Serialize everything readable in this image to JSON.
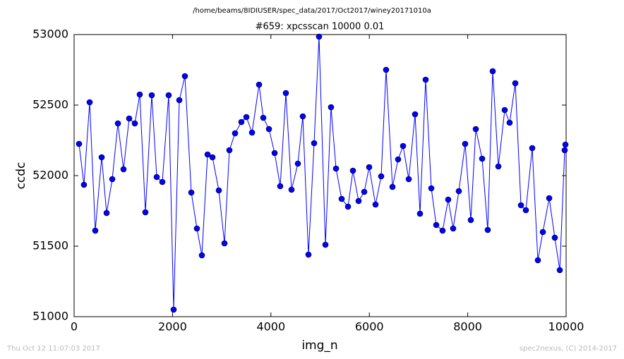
{
  "chart_data": {
    "type": "line",
    "suptitle": "/home/beams/8IDIUSER/spec_data/2017/Oct2017/winey20171010a",
    "title": "#659: xpcsscan 10000 0.01",
    "x_label": "img_n",
    "y_label": "ccdc",
    "footer_left": "Thu Oct 12 11:07:03 2017",
    "footer_right": "spec2nexus, (C) 2014-2017",
    "x": [
      100,
      200,
      316,
      430,
      560,
      660,
      775,
      890,
      1004,
      1119,
      1234,
      1334,
      1449,
      1578,
      1679,
      1793,
      1922,
      2023,
      2138,
      2252,
      2382,
      2496,
      2597,
      2712,
      2812,
      2941,
      3056,
      3156,
      3271,
      3400,
      3501,
      3616,
      3759,
      3845,
      3960,
      4075,
      4189,
      4304,
      4419,
      4548,
      4648,
      4763,
      4878,
      4978,
      5108,
      5222,
      5323,
      5438,
      5567,
      5667,
      5782,
      5897,
      5997,
      6126,
      6241,
      6341,
      6471,
      6585,
      6686,
      6801,
      6930,
      7030,
      7145,
      7260,
      7360,
      7489,
      7604,
      7704,
      7819,
      7948,
      8063,
      8164,
      8293,
      8407,
      8508,
      8623,
      8752,
      8852,
      8967,
      9082,
      9182,
      9311,
      9426,
      9527,
      9656,
      9770,
      9871,
      9971,
      9986
    ],
    "series": [
      {
        "name": "ccdc",
        "color": "#0000ff",
        "values": [
          52225,
          51935,
          52520,
          51610,
          52130,
          51735,
          51975,
          52370,
          52045,
          52405,
          52370,
          52575,
          51740,
          52570,
          51990,
          51955,
          52570,
          51050,
          52535,
          52705,
          51880,
          51625,
          51435,
          52150,
          52130,
          51895,
          51520,
          52180,
          52300,
          52380,
          52415,
          52305,
          52645,
          52410,
          52330,
          52160,
          51925,
          52585,
          51900,
          52085,
          52420,
          51440,
          52230,
          52985,
          51510,
          52485,
          52050,
          51835,
          51780,
          52035,
          51820,
          51885,
          52060,
          51795,
          51995,
          52750,
          51920,
          52115,
          52210,
          51975,
          52435,
          51730,
          52680,
          51910,
          51650,
          51610,
          51830,
          51625,
          51890,
          52225,
          51685,
          52330,
          52120,
          51615,
          52740,
          52065,
          52465,
          52375,
          52655,
          51790,
          51755,
          52195,
          51400,
          51600,
          51840,
          51560,
          51330,
          52180,
          52220
        ]
      }
    ],
    "xlim": [
      0,
      10000
    ],
    "xticks": [
      0,
      2000,
      4000,
      6000,
      8000,
      10000
    ],
    "ylim": [
      51000,
      53000
    ],
    "yticks": [
      51000,
      51500,
      52000,
      52500,
      53000
    ]
  }
}
